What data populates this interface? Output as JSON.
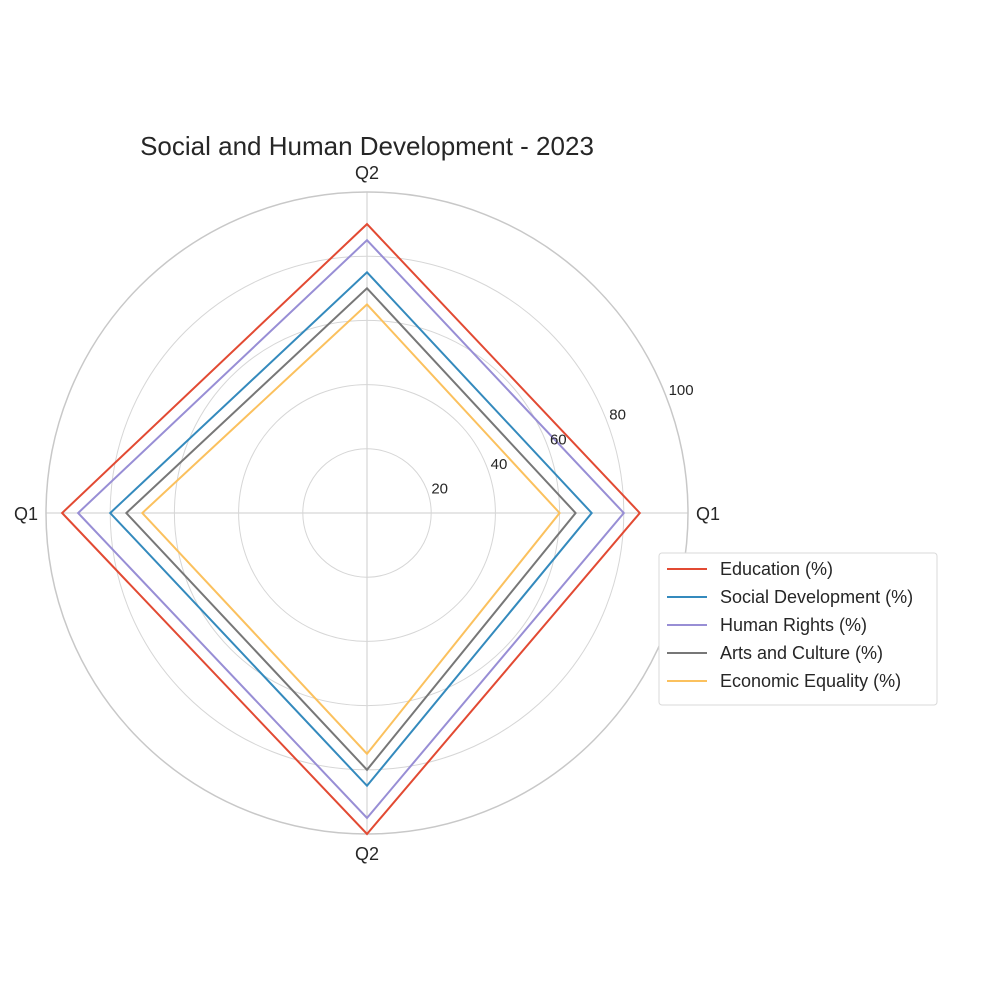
{
  "chart_data": {
    "type": "radar",
    "title": "Social and Human Development - 2023",
    "categories": [
      "Q1",
      "Q2",
      "Q1",
      "Q2"
    ],
    "rlim": [
      0,
      100
    ],
    "rticks": [
      20,
      40,
      60,
      80,
      100
    ],
    "rtick_labels": [
      "20",
      "40",
      "60",
      "80",
      "100"
    ],
    "grid": true,
    "legend_position": "right",
    "series": [
      {
        "name": "Education (%)",
        "color": "#e24a33",
        "values": [
          85,
          90,
          95,
          100
        ]
      },
      {
        "name": "Social Development (%)",
        "color": "#348abd",
        "values": [
          70,
          75,
          80,
          85
        ]
      },
      {
        "name": "Human Rights (%)",
        "color": "#988ed5",
        "values": [
          80,
          85,
          90,
          95
        ]
      },
      {
        "name": "Arts and Culture (%)",
        "color": "#777777",
        "values": [
          65,
          70,
          75,
          80
        ]
      },
      {
        "name": "Economic Equality (%)",
        "color": "#fbc15e",
        "values": [
          60,
          65,
          70,
          75
        ]
      }
    ]
  }
}
